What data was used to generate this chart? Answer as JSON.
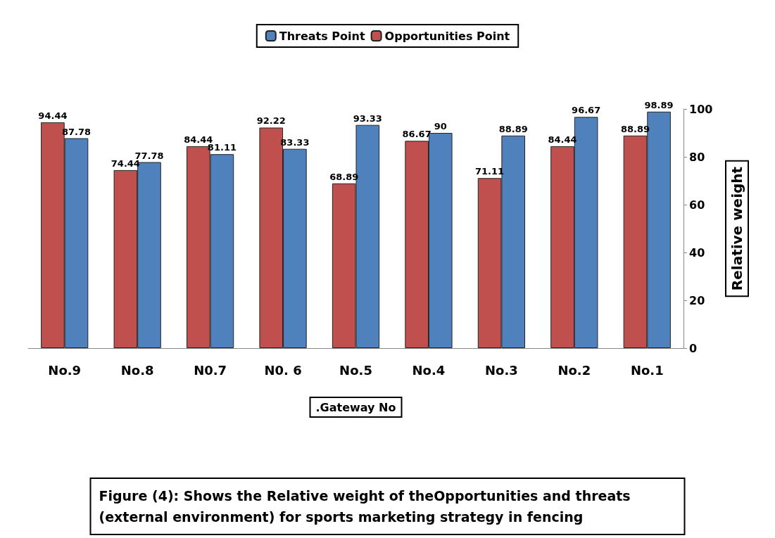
{
  "chart_data": {
    "type": "bar",
    "xlabel": ".Gateway No",
    "ylabel": "Relative weight",
    "categories": [
      "No.9",
      "No.8",
      "N0.7",
      "N0. 6",
      "No.5",
      "No.4",
      "No.3",
      "No.2",
      "No.1"
    ],
    "series": [
      {
        "name": "Opportunities Point",
        "color": "#c0504d",
        "values": [
          94.44,
          74.44,
          84.44,
          92.22,
          68.89,
          86.67,
          71.11,
          84.44,
          88.89
        ]
      },
      {
        "name": "Threats Point",
        "color": "#4f81bd",
        "values": [
          87.78,
          77.78,
          81.11,
          83.33,
          93.33,
          90,
          88.89,
          96.67,
          98.89
        ]
      }
    ],
    "ylim": [
      0,
      100
    ],
    "yticks": [
      0,
      20,
      40,
      60,
      80,
      100
    ],
    "grid": false,
    "legend": "top",
    "data_labels": true,
    "annotations": [
      "Figure (4): Shows the Relative weight of theOpportunities and threats (external environment) for sports marketing strategy in fencing"
    ]
  }
}
